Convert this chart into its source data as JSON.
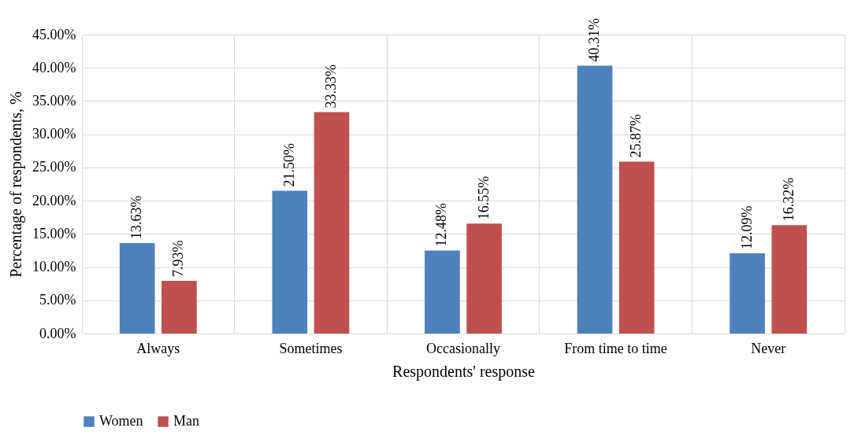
{
  "chart_data": {
    "type": "bar",
    "xlabel": "Respondents' response",
    "ylabel": "Percentage of respondents, %",
    "categories": [
      "Always",
      "Sometimes",
      "Occasionally",
      "From time to time",
      "Never"
    ],
    "series": [
      {
        "name": "Women",
        "color": "#4f81bd",
        "values": [
          13.63,
          21.5,
          12.48,
          40.31,
          12.09
        ],
        "value_labels": [
          "13.63%",
          "21.50%",
          "12.48%",
          "40.31%",
          "12.09%"
        ]
      },
      {
        "name": "Man",
        "color": "#c0504d",
        "values": [
          7.93,
          33.33,
          16.55,
          25.87,
          16.32
        ],
        "value_labels": [
          "7.93%",
          "33.33%",
          "16.55%",
          "25.87%",
          "16.32%"
        ]
      }
    ],
    "ylim": [
      0,
      45
    ],
    "yticks": [
      {
        "value": 0,
        "label": "0.00%"
      },
      {
        "value": 5,
        "label": "5.00%"
      },
      {
        "value": 10,
        "label": "10.00%"
      },
      {
        "value": 15,
        "label": "15.00%"
      },
      {
        "value": 20,
        "label": "20.00%"
      },
      {
        "value": 25,
        "label": "25.00%"
      },
      {
        "value": 30,
        "label": "30.00%"
      },
      {
        "value": 35,
        "label": "35.00%"
      },
      {
        "value": 40,
        "label": "40.00%"
      },
      {
        "value": 45,
        "label": "45.00%"
      }
    ],
    "grid": true,
    "legend": "bottom"
  }
}
